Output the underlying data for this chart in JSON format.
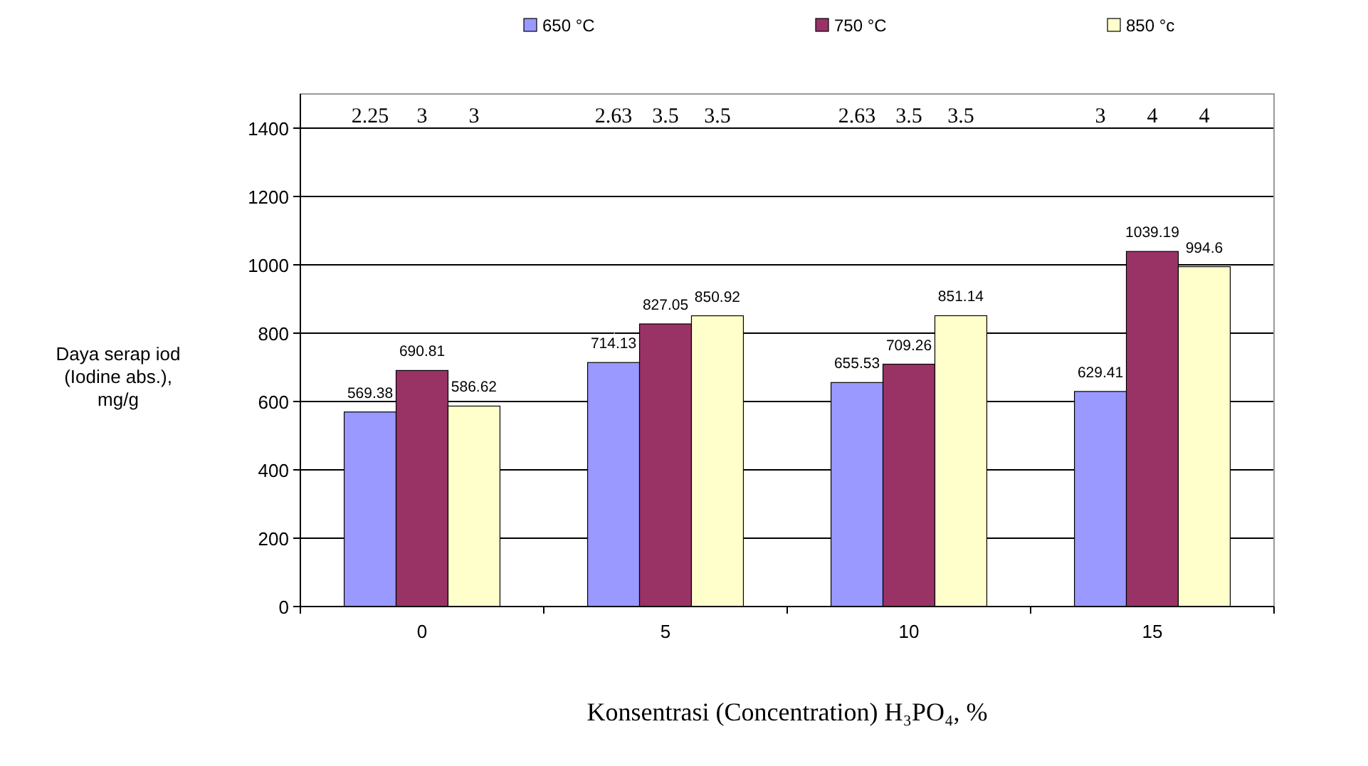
{
  "chart_data": {
    "type": "bar",
    "categories": [
      "0",
      "5",
      "10",
      "15"
    ],
    "series": [
      {
        "name": "650 °C",
        "color": "#9999ff",
        "values": [
          569.38,
          714.13,
          655.53,
          629.41
        ]
      },
      {
        "name": "750 °C",
        "color": "#993366",
        "values": [
          690.81,
          827.05,
          709.26,
          1039.19
        ]
      },
      {
        "name": "850 °c",
        "color": "#ffffcc",
        "values": [
          586.62,
          850.92,
          851.14,
          994.6
        ]
      }
    ],
    "ylim": [
      0,
      1500
    ],
    "yticks": [
      0,
      200,
      400,
      600,
      800,
      1000,
      1200,
      1400
    ],
    "grid": "y",
    "legend": "top",
    "data_labels": true,
    "ylabel": "Daya serap iod (Iodine abs.), mg/g",
    "xlabel": "Konsentrasi (Concentration) H₃PO₄, %",
    "annotations": [
      "2.25",
      "3",
      "3",
      "2.63",
      "3.5",
      "3.5",
      "2.63",
      "3.5",
      "3.5",
      "3",
      "4",
      "4"
    ]
  }
}
